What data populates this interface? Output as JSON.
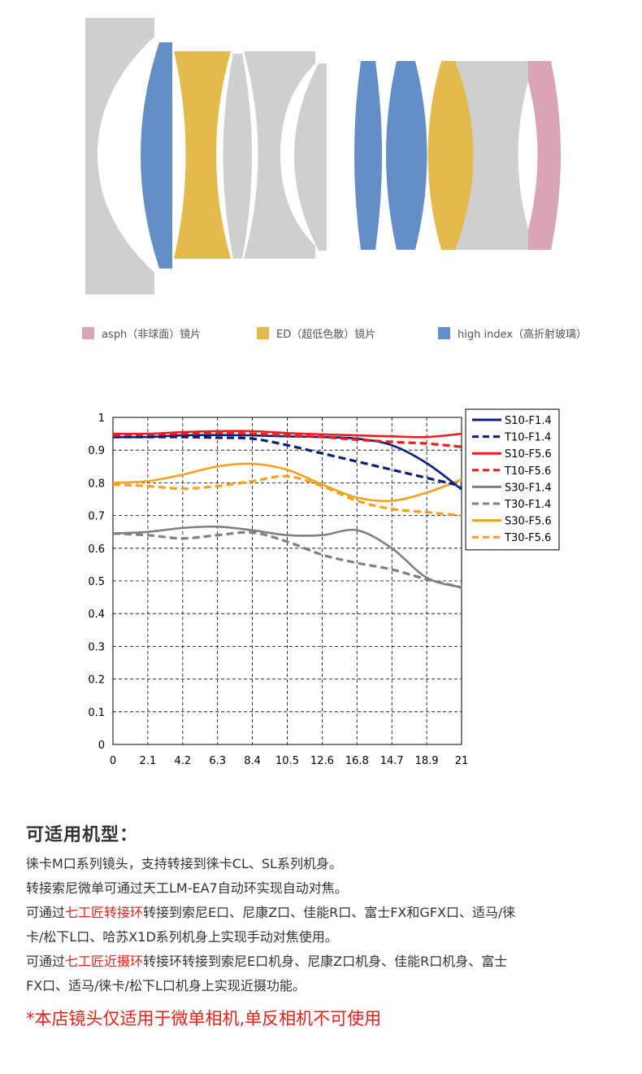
{
  "lens_legend": [
    {
      "label": "asph（非球面）镜片",
      "color": "#d9a5b6"
    },
    {
      "label": "ED（超低色散）镜片",
      "color": "#e3bb4d"
    },
    {
      "label": "high index（高折射玻璃）",
      "color": "#648fc6"
    }
  ],
  "colors": {
    "grey": "#cfcfcf",
    "pink": "#d9a5b6",
    "yellow": "#e3bb4d",
    "blue": "#648fc6"
  },
  "chart_data": {
    "type": "line",
    "x": [
      0,
      2.1,
      4.2,
      6.3,
      8.4,
      10.5,
      12.6,
      16.8,
      14.7,
      18.9,
      21
    ],
    "x_tick_labels": [
      "0",
      "2.1",
      "4.2",
      "6.3",
      "8.4",
      "10.5",
      "12.6",
      "16.8",
      "14.7",
      "18.9",
      "21"
    ],
    "y_tick_labels": [
      "0",
      "0.1",
      "0.2",
      "0.3",
      "0.4",
      "0.5",
      "0.6",
      "0.7",
      "0.8",
      "0.9",
      "1"
    ],
    "ylim": [
      0,
      1
    ],
    "xlim": [
      0,
      21
    ],
    "grid": true,
    "legend_position": "right",
    "series": [
      {
        "name": "S10-F1.4",
        "color": "#0b1f7a",
        "dash": false,
        "values": [
          0.94,
          0.94,
          0.945,
          0.946,
          0.945,
          0.942,
          0.94,
          0.935,
          0.915,
          0.86,
          0.78
        ]
      },
      {
        "name": "T10-F1.4",
        "color": "#0b1f7a",
        "dash": true,
        "values": [
          0.94,
          0.94,
          0.94,
          0.938,
          0.935,
          0.915,
          0.89,
          0.865,
          0.84,
          0.815,
          0.79
        ]
      },
      {
        "name": "S10-F5.6",
        "color": "#ee1c1c",
        "dash": false,
        "values": [
          0.95,
          0.95,
          0.955,
          0.958,
          0.958,
          0.952,
          0.948,
          0.945,
          0.942,
          0.94,
          0.95
        ]
      },
      {
        "name": "T10-F5.6",
        "color": "#ee1c1c",
        "dash": true,
        "values": [
          0.945,
          0.948,
          0.95,
          0.952,
          0.95,
          0.945,
          0.94,
          0.932,
          0.925,
          0.92,
          0.91
        ]
      },
      {
        "name": "S30-F1.4",
        "color": "#808080",
        "dash": false,
        "values": [
          0.645,
          0.65,
          0.662,
          0.666,
          0.655,
          0.64,
          0.64,
          0.655,
          0.6,
          0.51,
          0.48
        ]
      },
      {
        "name": "T30-F1.4",
        "color": "#808080",
        "dash": true,
        "values": [
          0.645,
          0.64,
          0.63,
          0.64,
          0.648,
          0.62,
          0.58,
          0.555,
          0.535,
          0.505,
          0.48
        ]
      },
      {
        "name": "S30-F5.6",
        "color": "#f4a11c",
        "dash": false,
        "values": [
          0.8,
          0.805,
          0.825,
          0.85,
          0.858,
          0.84,
          0.795,
          0.755,
          0.745,
          0.77,
          0.81
        ]
      },
      {
        "name": "T30-F5.6",
        "color": "#f4a11c",
        "dash": true,
        "values": [
          0.795,
          0.79,
          0.782,
          0.79,
          0.805,
          0.82,
          0.79,
          0.745,
          0.72,
          0.71,
          0.7
        ]
      }
    ]
  },
  "section_title": "可适用机型：",
  "p1": "徕卡M口系列镜头，支持转接到徕卡CL、SL系列机身。",
  "p2": "转接索尼微单可通过天工LM-EA7自动环实现自动对焦。",
  "p3": {
    "prefix": "可通过",
    "highlight": "七工匠转接环",
    "rest": "转接到索尼E口、尼康Z口、佳能R口、富士FX和GFX口、适马/徕",
    "line2": "卡/松下L口、哈苏X1D系列机身上实现手动对焦使用。"
  },
  "p4": {
    "prefix": "可通过",
    "highlight": "七工匠近摄环",
    "rest": "转接环转接到索尼E口机身、尼康Z口机身、佳能R口机身、富士",
    "line2": "FX口、适马/徕卡/松下L口机身上实现近摄功能。"
  },
  "warning": "*本店镜头仅适用于微单相机,单反相机不可使用"
}
